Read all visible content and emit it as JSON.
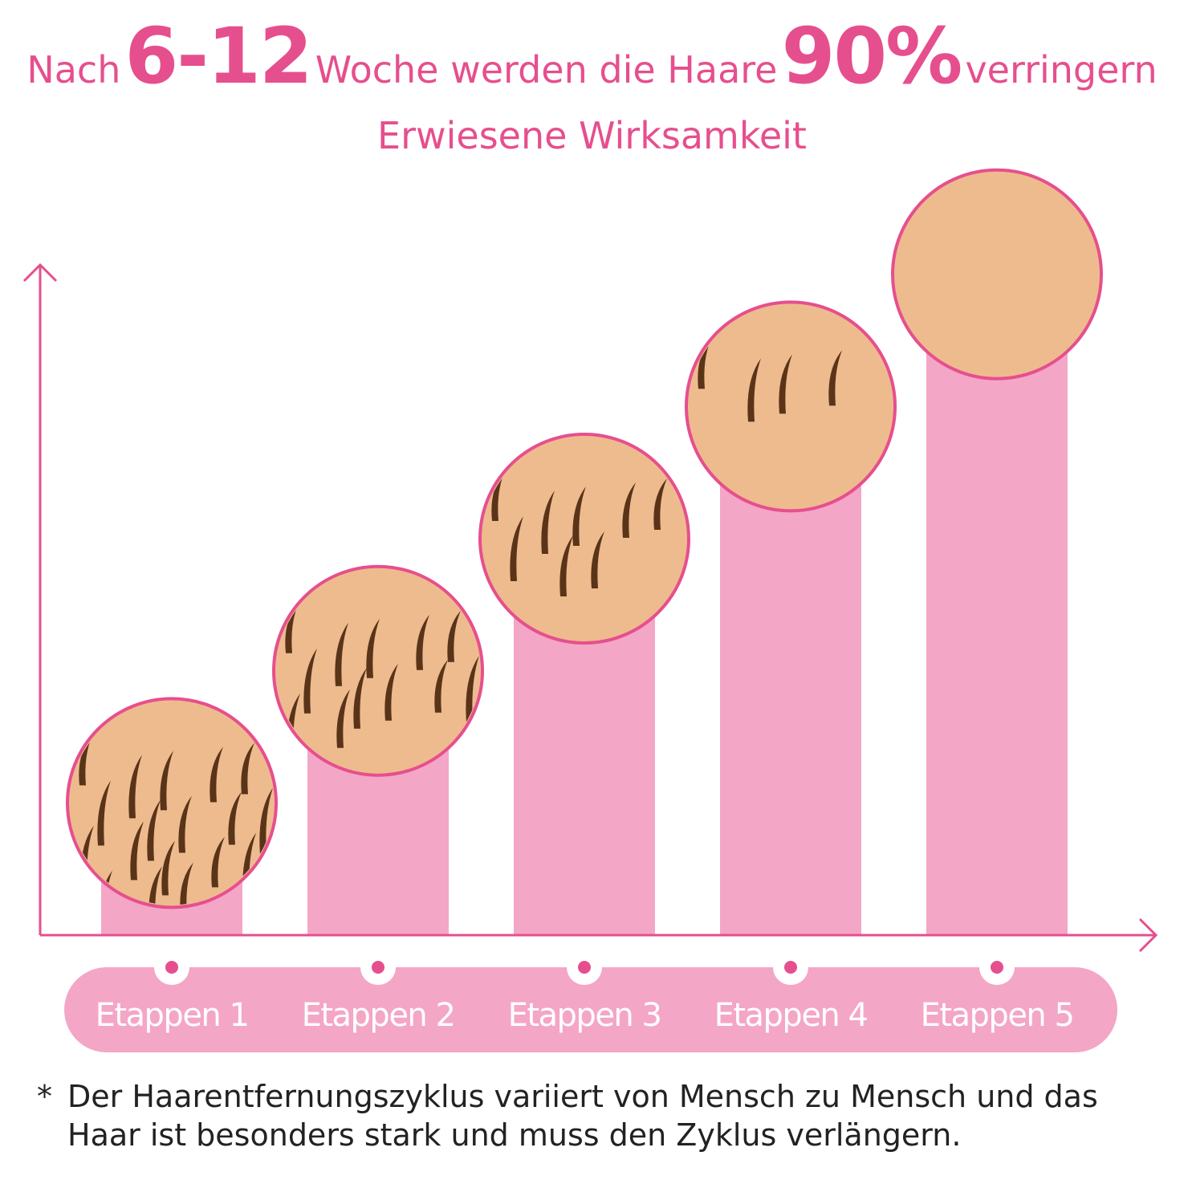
{
  "headline": {
    "part1": "Nach",
    "weeks": "6-12",
    "part2": "Woche werden die Haare",
    "percent": "90%",
    "part3": "verringern"
  },
  "subtitle": "Erwiesene Wirksamkeit",
  "chart_data": {
    "type": "bar",
    "categories": [
      "Etappen 1",
      "Etappen 2",
      "Etappen 3",
      "Etappen 4",
      "Etappen 5"
    ],
    "values": [
      1,
      2,
      3,
      4,
      5
    ],
    "hair_density": [
      20,
      12,
      8,
      4,
      0
    ],
    "title": "",
    "xlabel": "",
    "ylabel": "",
    "ylim": [
      0,
      5.8
    ]
  },
  "colors": {
    "accent": "#e64f8e",
    "bar": "#f4a6c6",
    "skin": "#eebb8f",
    "hair": "#5a3418",
    "label_bg": "#f4a6c6"
  },
  "footnote": {
    "star": "*",
    "text": "Der Haarentfernungszyklus variiert von Mensch zu Mensch und das Haar ist besonders stark und muss den Zyklus verlängern."
  }
}
